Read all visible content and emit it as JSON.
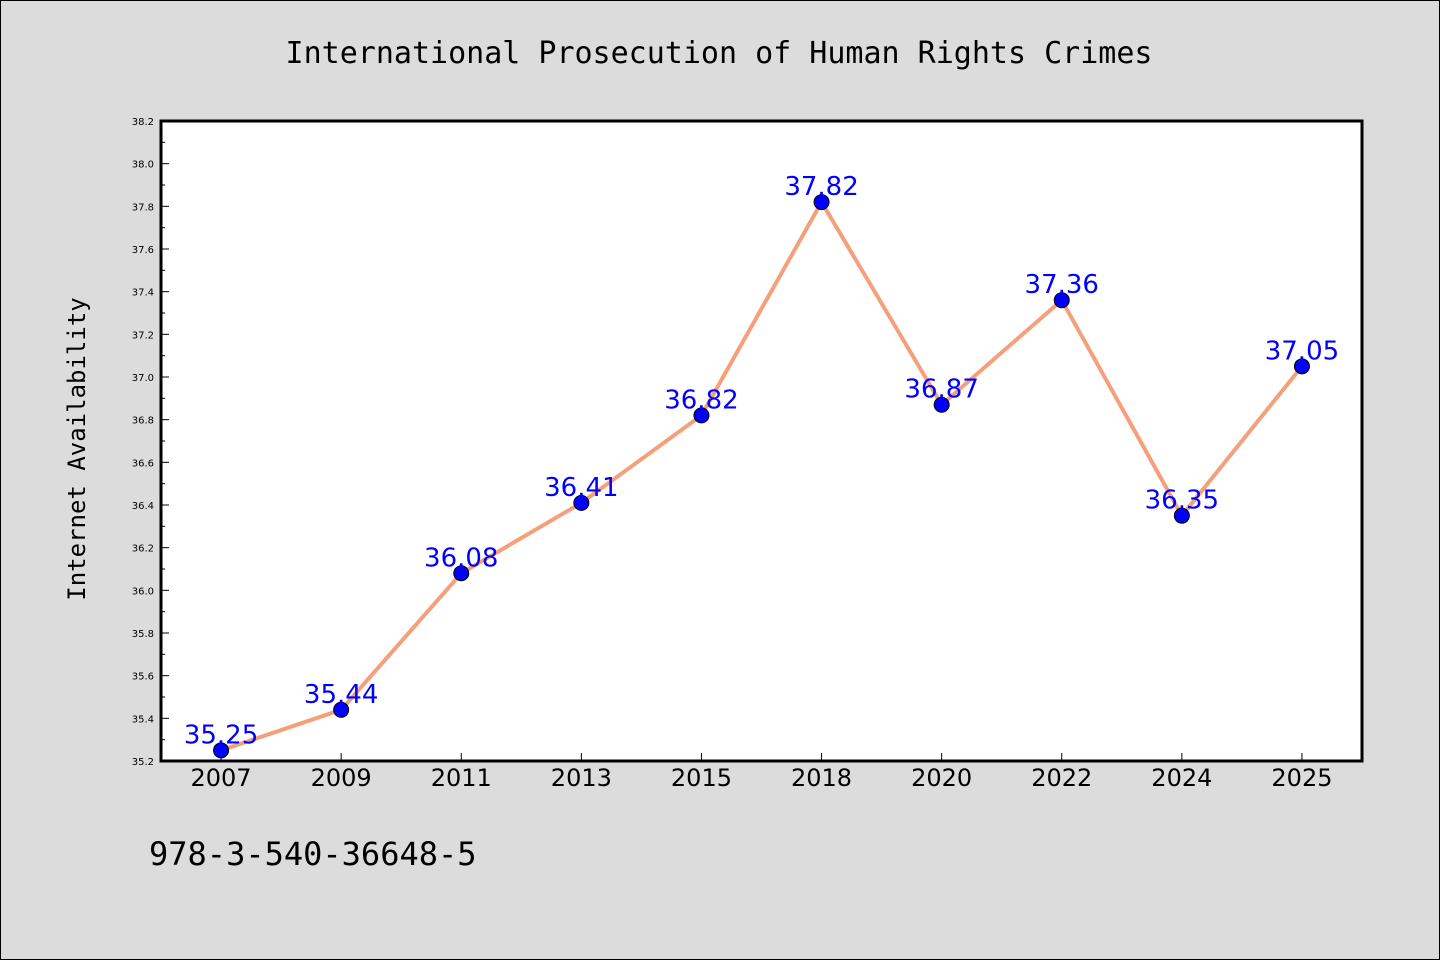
{
  "chart_data": {
    "type": "line",
    "title": "International Prosecution of Human Rights Crimes",
    "xlabel": "",
    "ylabel": "Internet Availability",
    "categories": [
      "2007",
      "2009",
      "2011",
      "2013",
      "2015",
      "2018",
      "2020",
      "2022",
      "2024",
      "2025"
    ],
    "values": [
      35.25,
      35.44,
      36.08,
      36.41,
      36.82,
      37.82,
      36.87,
      37.36,
      36.35,
      37.05
    ],
    "data_labels": [
      "35.25",
      "35.44",
      "36.08",
      "36.41",
      "36.82",
      "37.82",
      "36.87",
      "37.36",
      "36.35",
      "37.05"
    ],
    "ylim": [
      35.2,
      38.2
    ],
    "yticks": [
      "35.2",
      "35.4",
      "35.6",
      "35.8",
      "36.0",
      "36.2",
      "36.4",
      "36.6",
      "36.8",
      "37.0",
      "37.2",
      "37.4",
      "37.6",
      "37.8",
      "38.0",
      "38.2"
    ],
    "grid": false,
    "legend": "none",
    "line_color": "#f4a07c",
    "marker_color": "#0000ff"
  },
  "footer": {
    "isbn": "978-3-540-36648-5"
  }
}
